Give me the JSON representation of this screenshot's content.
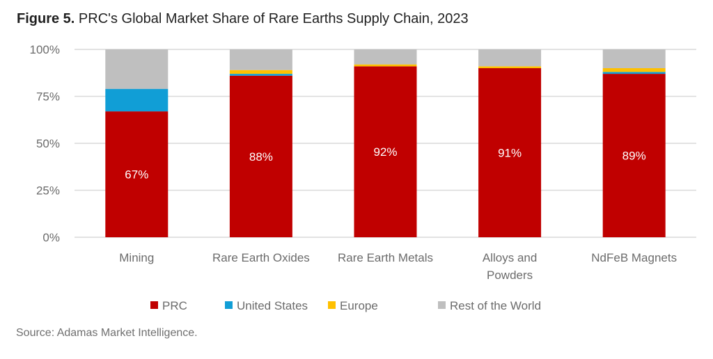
{
  "title": {
    "prefix": "Figure 5.",
    "text": "PRC's Global Market Share of Rare Earths Supply Chain, 2023"
  },
  "source": "Source: Adamas Market Intelligence.",
  "chart_data": {
    "type": "bar",
    "stacked": true,
    "percent": true,
    "title": "Figure 5. PRC's Global Market Share of Rare Earths Supply Chain, 2023",
    "xlabel": "",
    "ylabel": "",
    "ylim": [
      0,
      100
    ],
    "yticks": [
      "0%",
      "25%",
      "50%",
      "75%",
      "100%"
    ],
    "grid": true,
    "legend_position": "bottom",
    "categories": [
      [
        "Mining"
      ],
      [
        "Rare Earth Oxides"
      ],
      [
        "Rare Earth Metals"
      ],
      [
        "Alloys and",
        "Powders"
      ],
      [
        "NdFeB Magnets"
      ]
    ],
    "series": [
      {
        "name": "PRC",
        "color": "#C00000",
        "values": [
          67,
          86,
          91,
          90,
          87
        ]
      },
      {
        "name": "United States",
        "color": "#119ED6",
        "values": [
          12,
          1,
          0,
          0,
          1
        ]
      },
      {
        "name": "Europe",
        "color": "#FFC000",
        "values": [
          0,
          2,
          1,
          1,
          2
        ]
      },
      {
        "name": "Rest of the World",
        "color": "#BFBFBF",
        "values": [
          21,
          11,
          8,
          9,
          10
        ]
      }
    ],
    "data_labels": [
      "67%",
      "88%",
      "92%",
      "91%",
      "89%"
    ]
  }
}
